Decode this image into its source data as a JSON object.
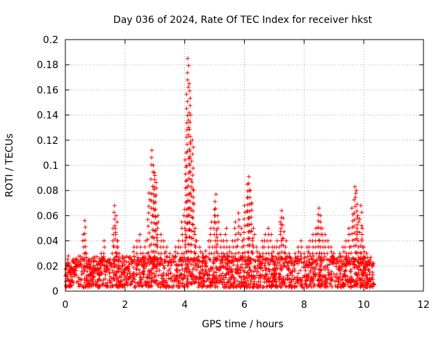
{
  "chart_data": {
    "type": "scatter",
    "title": "Day 036 of 2024, Rate Of TEC Index for receiver hkst",
    "xlabel": "GPS time / hours",
    "ylabel": "ROTI / TECUs",
    "xlim": [
      0,
      12
    ],
    "ylim": [
      0,
      0.2
    ],
    "xticks": [
      0,
      2,
      4,
      6,
      8,
      10,
      12
    ],
    "yticks": [
      0,
      0.02,
      0.04,
      0.06,
      0.08,
      0.1,
      0.12,
      0.14,
      0.16,
      0.18,
      0.2
    ],
    "xtick_labels": [
      "0",
      "2",
      "4",
      "6",
      "8",
      "10",
      "12"
    ],
    "ytick_labels": [
      "0",
      "0.02",
      "0.04",
      "0.06",
      "0.08",
      "0.1",
      "0.12",
      "0.14",
      "0.16",
      "0.18",
      "0.2"
    ],
    "grid": true,
    "marker": "+",
    "series": [
      {
        "name": "ROTI",
        "color": "#ff0000",
        "x": [
          0.05,
          0.1,
          0.15,
          0.2,
          0.3,
          0.4,
          0.5,
          0.6,
          0.65,
          0.7,
          0.8,
          0.9,
          1.0,
          1.1,
          1.2,
          1.3,
          1.4,
          1.5,
          1.6,
          1.65,
          1.7,
          1.75,
          1.8,
          1.9,
          2.0,
          2.1,
          2.2,
          2.3,
          2.4,
          2.5,
          2.6,
          2.7,
          2.8,
          2.9,
          2.95,
          3.0,
          3.05,
          3.1,
          3.2,
          3.3,
          3.4,
          3.5,
          3.6,
          3.7,
          3.8,
          3.9,
          4.0,
          4.05,
          4.1,
          4.15,
          4.2,
          4.25,
          4.3,
          4.35,
          4.4,
          4.5,
          4.6,
          4.7,
          4.8,
          4.9,
          5.0,
          5.05,
          5.1,
          5.2,
          5.3,
          5.4,
          5.5,
          5.6,
          5.7,
          5.8,
          5.9,
          6.0,
          6.1,
          6.15,
          6.2,
          6.25,
          6.3,
          6.4,
          6.5,
          6.6,
          6.7,
          6.8,
          6.9,
          7.0,
          7.1,
          7.2,
          7.25,
          7.3,
          7.4,
          7.5,
          7.6,
          7.7,
          7.8,
          7.9,
          8.0,
          8.1,
          8.2,
          8.3,
          8.4,
          8.5,
          8.55,
          8.6,
          8.7,
          8.8,
          8.9,
          9.0,
          9.1,
          9.2,
          9.3,
          9.4,
          9.5,
          9.6,
          9.7,
          9.75,
          9.8,
          9.9,
          9.95,
          10.0,
          10.1,
          10.2,
          10.3
        ],
        "y": [
          0.022,
          0.028,
          0.015,
          0.018,
          0.012,
          0.02,
          0.025,
          0.045,
          0.056,
          0.03,
          0.018,
          0.014,
          0.016,
          0.022,
          0.03,
          0.04,
          0.02,
          0.025,
          0.05,
          0.068,
          0.06,
          0.04,
          0.03,
          0.02,
          0.015,
          0.018,
          0.025,
          0.035,
          0.04,
          0.045,
          0.03,
          0.04,
          0.078,
          0.112,
          0.1,
          0.092,
          0.082,
          0.06,
          0.045,
          0.04,
          0.035,
          0.03,
          0.028,
          0.035,
          0.04,
          0.055,
          0.065,
          0.11,
          0.185,
          0.165,
          0.14,
          0.12,
          0.08,
          0.05,
          0.04,
          0.035,
          0.03,
          0.032,
          0.04,
          0.055,
          0.065,
          0.077,
          0.06,
          0.045,
          0.04,
          0.05,
          0.035,
          0.04,
          0.055,
          0.062,
          0.05,
          0.068,
          0.085,
          0.091,
          0.08,
          0.07,
          0.05,
          0.035,
          0.03,
          0.04,
          0.045,
          0.05,
          0.045,
          0.035,
          0.04,
          0.055,
          0.064,
          0.058,
          0.04,
          0.03,
          0.025,
          0.03,
          0.035,
          0.04,
          0.03,
          0.035,
          0.04,
          0.045,
          0.05,
          0.066,
          0.06,
          0.05,
          0.045,
          0.04,
          0.035,
          0.03,
          0.025,
          0.03,
          0.035,
          0.04,
          0.05,
          0.066,
          0.083,
          0.08,
          0.06,
          0.068,
          0.05,
          0.035,
          0.03,
          0.025,
          0.02
        ]
      }
    ],
    "background_noise": {
      "x_range": [
        0,
        10.35
      ],
      "y_range": [
        0.003,
        0.028
      ],
      "description": "dense band of ROTI values"
    }
  }
}
